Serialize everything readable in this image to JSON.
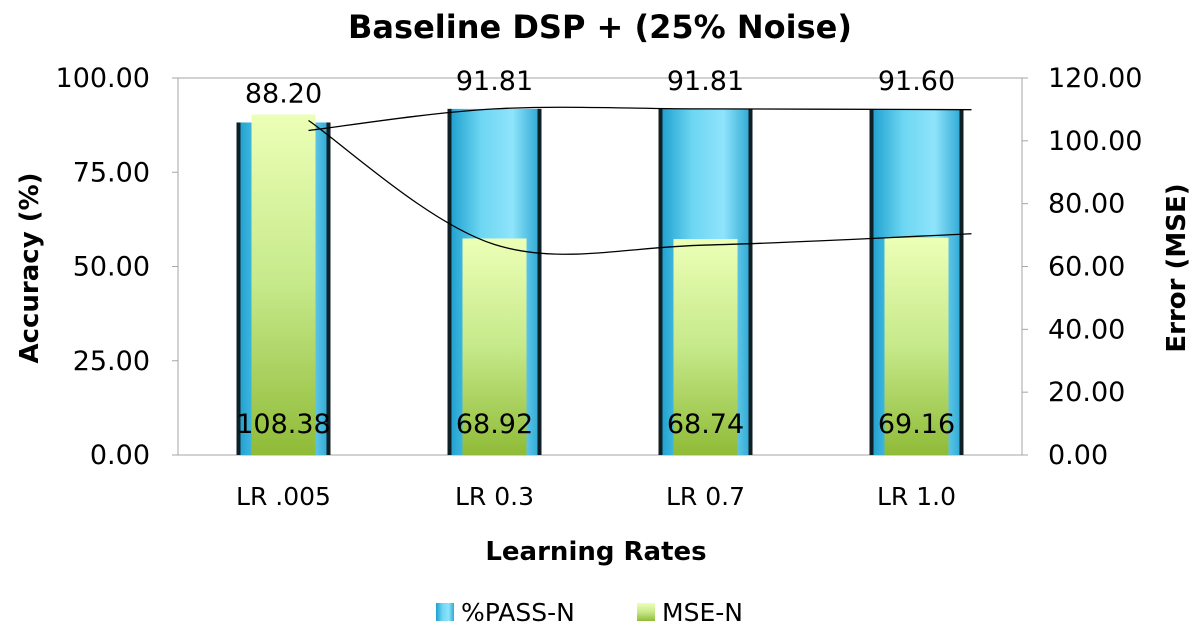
{
  "chart_data": {
    "type": "bar",
    "title": "Baseline DSP + (25% Noise)",
    "xlabel": "Learning Rates",
    "ylabel": "Accuracy (%)",
    "y2label": "Error (MSE)",
    "categories": [
      "LR .005",
      "LR 0.3",
      "LR 0.7",
      "LR 1.0"
    ],
    "ylim": [
      0,
      100
    ],
    "y2lim": [
      0,
      120
    ],
    "yticks": [
      "0.00",
      "25.00",
      "50.00",
      "75.00",
      "100.00"
    ],
    "y2ticks": [
      "0.00",
      "20.00",
      "40.00",
      "60.00",
      "80.00",
      "100.00",
      "120.00"
    ],
    "series": [
      {
        "name": "%PASS-N",
        "axis": "left",
        "values": [
          88.2,
          91.81,
          91.81,
          91.6
        ],
        "labels": [
          "88.20",
          "91.81",
          "91.81",
          "91.60"
        ],
        "color": "#55cbea"
      },
      {
        "name": "MSE-N",
        "axis": "right",
        "values": [
          108.38,
          68.92,
          68.74,
          69.16
        ],
        "labels": [
          "108.38",
          "68.92",
          "68.74",
          "69.16"
        ],
        "color": "#a6cf4a"
      }
    ],
    "trendlines": true,
    "legend": "bottom",
    "grid": false
  }
}
